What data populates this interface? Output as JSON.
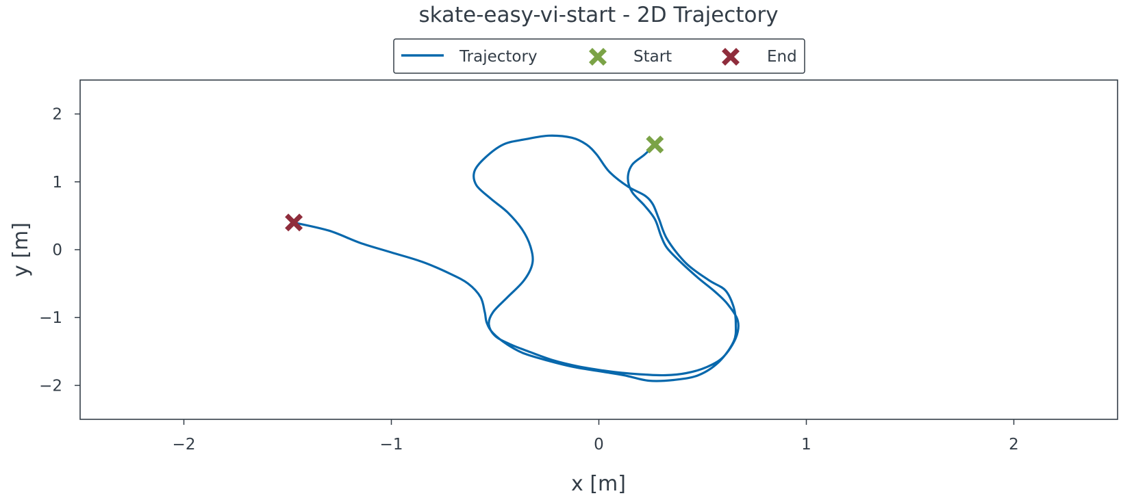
{
  "chart_data": {
    "type": "line",
    "title": "skate-easy-vi-start - 2D Trajectory",
    "xlabel": "x [m]",
    "ylabel": "y [m]",
    "xlim": [
      -2.5,
      2.5
    ],
    "ylim": [
      -2.5,
      2.5
    ],
    "xticks": [
      -2,
      -1,
      0,
      1,
      2
    ],
    "yticks": [
      2,
      1,
      0,
      -1,
      -2
    ],
    "xtick_labels": [
      "−2",
      "−1",
      "0",
      "1",
      "2"
    ],
    "ytick_labels": [
      "2",
      "1",
      "0",
      "−1",
      "−2"
    ],
    "grid": false,
    "legend": {
      "position": "top-center",
      "items": [
        "Trajectory",
        "Start",
        "End"
      ]
    },
    "colors": {
      "trajectory": "#0868ac",
      "start": "#7ba347",
      "end": "#8f2d3c",
      "axes": "#333d47"
    },
    "series": [
      {
        "name": "Trajectory",
        "x": [
          0.27,
          0.22,
          0.16,
          0.14,
          0.16,
          0.22,
          0.27,
          0.3,
          0.33,
          0.4,
          0.48,
          0.56,
          0.62,
          0.67,
          0.66,
          0.6,
          0.52,
          0.42,
          0.32,
          0.22,
          0.13,
          0.02,
          -0.1,
          -0.22,
          -0.33,
          -0.43,
          -0.5,
          -0.53,
          -0.51,
          -0.44,
          -0.36,
          -0.32,
          -0.33,
          -0.37,
          -0.44,
          -0.52,
          -0.59,
          -0.6,
          -0.55,
          -0.46,
          -0.35,
          -0.24,
          -0.13,
          -0.06,
          -0.01,
          0.05,
          0.14,
          0.22,
          0.26,
          0.29,
          0.33,
          0.42,
          0.53,
          0.61,
          0.65,
          0.66,
          0.65,
          0.58,
          0.48,
          0.36,
          0.24,
          0.12,
          0.0,
          -0.12,
          -0.24,
          -0.36,
          -0.44,
          -0.51,
          -0.54,
          -0.55,
          -0.57,
          -0.63,
          -0.72,
          -0.85,
          -1.0,
          -1.15,
          -1.3,
          -1.47
        ],
        "y": [
          1.55,
          1.4,
          1.25,
          1.05,
          0.85,
          0.65,
          0.45,
          0.2,
          0.02,
          -0.2,
          -0.42,
          -0.62,
          -0.8,
          -1.05,
          -1.3,
          -1.58,
          -1.73,
          -1.82,
          -1.85,
          -1.84,
          -1.82,
          -1.78,
          -1.72,
          -1.63,
          -1.51,
          -1.39,
          -1.27,
          -1.1,
          -0.92,
          -0.7,
          -0.45,
          -0.2,
          0.05,
          0.3,
          0.55,
          0.75,
          0.95,
          1.15,
          1.35,
          1.55,
          1.63,
          1.68,
          1.65,
          1.55,
          1.4,
          1.15,
          0.93,
          0.8,
          0.67,
          0.45,
          0.15,
          -0.2,
          -0.45,
          -0.6,
          -0.85,
          -1.1,
          -1.35,
          -1.65,
          -1.85,
          -1.92,
          -1.93,
          -1.85,
          -1.79,
          -1.73,
          -1.64,
          -1.53,
          -1.4,
          -1.23,
          -1.08,
          -0.92,
          -0.7,
          -0.5,
          -0.35,
          -0.18,
          -0.04,
          0.1,
          0.28,
          0.4
        ]
      }
    ],
    "markers": [
      {
        "name": "Start",
        "x": 0.27,
        "y": 1.55
      },
      {
        "name": "End",
        "x": -1.47,
        "y": 0.4
      }
    ]
  }
}
